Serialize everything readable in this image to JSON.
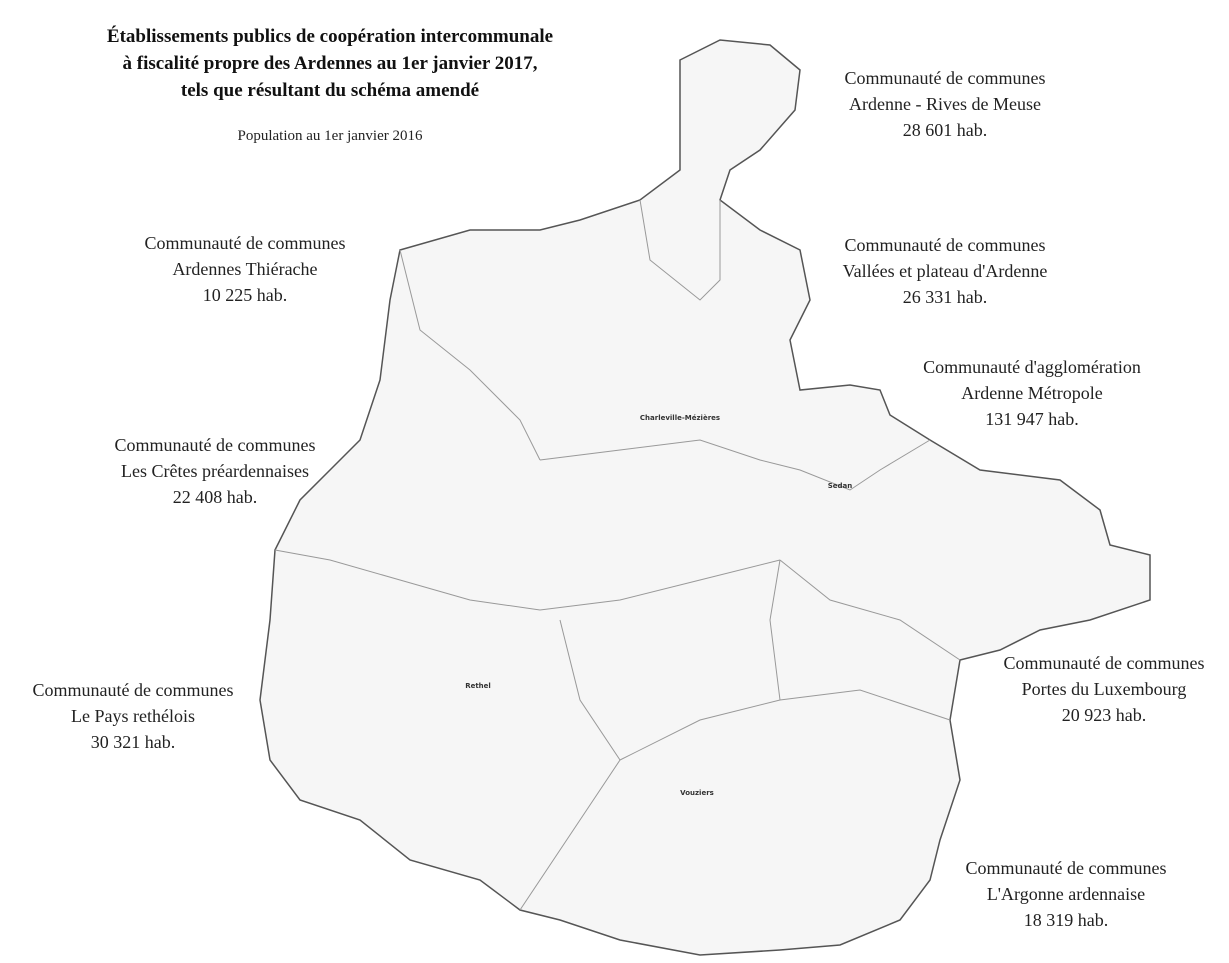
{
  "header": {
    "title": [
      "Établissements publics de coopération intercommunale",
      "à fiscalité propre des Ardennes au 1er janvier 2017,",
      "tels que résultant du schéma amendé"
    ],
    "subtitle": "Population au 1er janvier 2016"
  },
  "epci": [
    {
      "lines": [
        "Communauté de communes",
        "Ardenne - Rives de Meuse"
      ],
      "population": "28 601 hab."
    },
    {
      "lines": [
        "Communauté de communes",
        "Ardennes Thiérache"
      ],
      "population": "10 225 hab."
    },
    {
      "lines": [
        "Communauté de communes",
        "Vallées et plateau d'Ardenne"
      ],
      "population": "26 331 hab."
    },
    {
      "lines": [
        "Communauté d'agglomération",
        "Ardenne Métropole"
      ],
      "population": "131 947 hab."
    },
    {
      "lines": [
        "Communauté de communes",
        "Les Crêtes préardennaises"
      ],
      "population": "22 408 hab."
    },
    {
      "lines": [
        "Communauté de communes",
        "Portes du Luxembourg"
      ],
      "population": "20 923 hab."
    },
    {
      "lines": [
        "Communauté de communes",
        "Le Pays rethélois"
      ],
      "population": "30 321 hab."
    },
    {
      "lines": [
        "Communauté de communes",
        "L'Argonne ardennaise"
      ],
      "population": "18 319 hab."
    }
  ],
  "towns": [
    "Charleville-Mézières",
    "Sedan",
    "Rethel",
    "Vouziers"
  ]
}
